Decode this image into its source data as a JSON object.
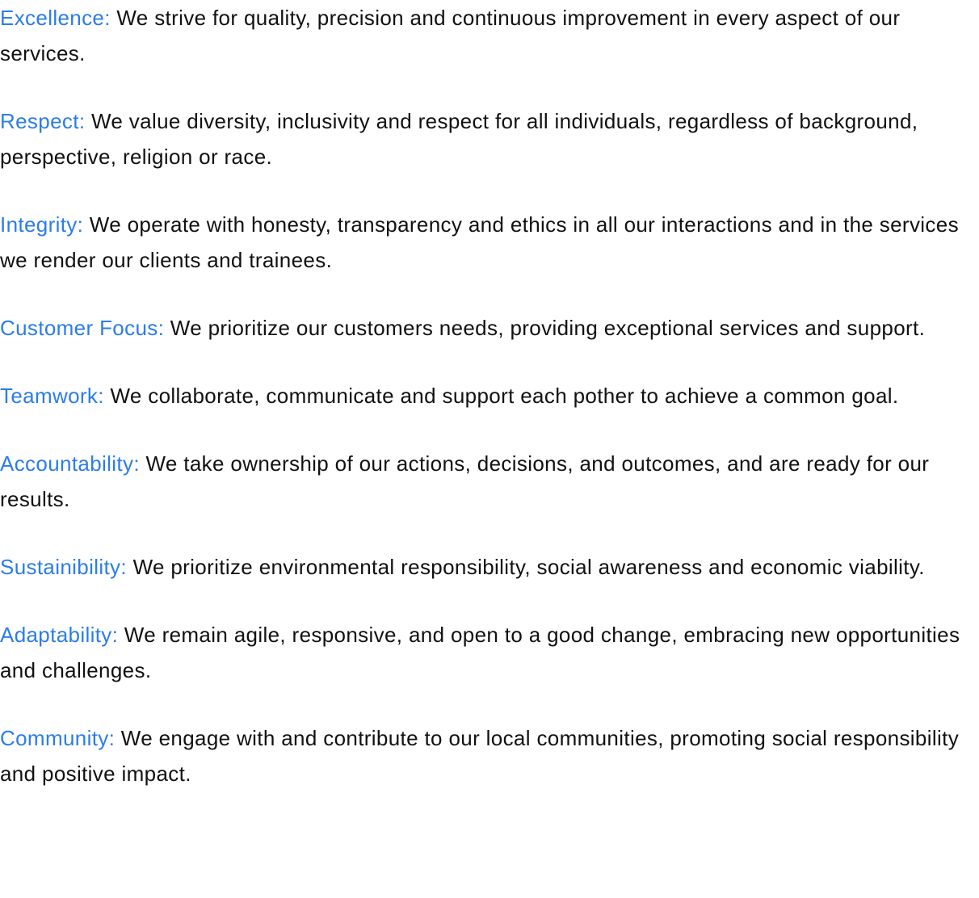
{
  "colors": {
    "term": "#2b7de9",
    "text": "#111111",
    "background": "#ffffff"
  },
  "values": [
    {
      "term": "Excellence:",
      "description": "We strive for quality, precision and continuous improvement in every aspect of our services."
    },
    {
      "term": "Respect:",
      "description": "We value diversity, inclusivity and respect for all individuals, regardless of background, perspective, religion or race."
    },
    {
      "term": "Integrity:",
      "description": "We operate with honesty, transparency and ethics in all our interactions and in the services we render our clients and trainees."
    },
    {
      "term": "Customer Focus:",
      "description": "We prioritize our customers needs, providing exceptional services and support."
    },
    {
      "term": "Teamwork:",
      "description": "We collaborate, communicate and support each pother to achieve a common goal."
    },
    {
      "term": "Accountability:",
      "description": "We take ownership of our actions, decisions, and outcomes, and are ready for our results."
    },
    {
      "term": "Sustainibility:",
      "description": "We prioritize environmental responsibility, social awareness and economic viability."
    },
    {
      "term": "Adaptability:",
      "description": "We remain agile, responsive, and open to a good change, embracing new opportunities and challenges."
    },
    {
      "term": "Community:",
      "description": "We engage with and contribute to our local communities, promoting social responsibility and positive impact."
    }
  ]
}
